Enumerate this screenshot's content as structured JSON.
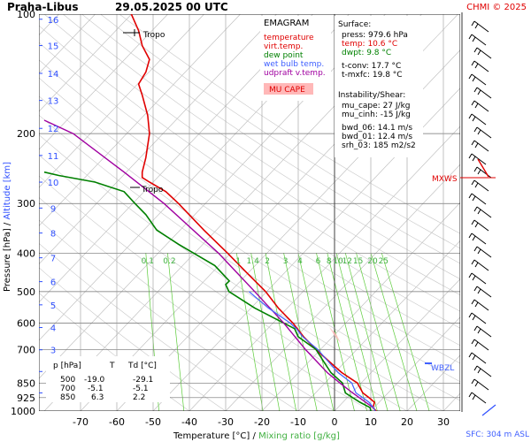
{
  "header": {
    "station": "Praha-Libus",
    "datetime": "29.05.2025 00 UTC",
    "copyright": "CHMI © 2025"
  },
  "legend": {
    "title": "EMAGRAM",
    "items": [
      {
        "label": "temperature",
        "color": "#e00000"
      },
      {
        "label": "virt.temp.",
        "color": "#e00000"
      },
      {
        "label": "dew point",
        "color": "#008000"
      },
      {
        "label": "wet bulb temp.",
        "color": "#4060ff"
      },
      {
        "label": "udpraft v.temp.",
        "color": "#a000a0"
      }
    ],
    "mu_cape_box": "MU CAPE"
  },
  "surface_panel": {
    "title": "Surface:",
    "lines": [
      {
        "text": "press: 979.6 hPa",
        "color": "#000000"
      },
      {
        "text": "temp: 10.6 °C",
        "color": "#e00000"
      },
      {
        "text": "dwpt: 9.8 °C",
        "color": "#008000"
      },
      {
        "text": "t-conv: 17.7 °C",
        "color": "#000000"
      },
      {
        "text": "t-mxfc: 19.8 °C",
        "color": "#000000"
      }
    ]
  },
  "instability_panel": {
    "title": "Instability/Shear:",
    "lines": [
      "mu_cape: 27 J/kg",
      "mu_cinh: -15 J/kg",
      "bwd_06: 14.1 m/s",
      "bwd_01: 12.4 m/s",
      "srh_03: 185 m2/s2"
    ]
  },
  "table": {
    "headers": [
      "p [hPa]",
      "T",
      "Td [°C]"
    ],
    "rows": [
      [
        "500",
        "-19.0",
        "-29.1"
      ],
      [
        "700",
        "-5.1",
        "-5.1"
      ],
      [
        "850",
        "6.3",
        "2.2"
      ]
    ]
  },
  "annotations": {
    "tropo_upper": "Tropo",
    "tropo_lower": "Tropo",
    "mxws": "MXWS",
    "wbzl": "WBZL",
    "sfc": "SFC: 304 m ASL"
  },
  "colors": {
    "temperature": "#e00000",
    "dewpoint": "#008000",
    "parcel": "#a000a0",
    "wetbulb": "#4060ff",
    "mixing_ratio": "#5ccc3a",
    "grid": "#808080",
    "isotherm": "#b8b8b8"
  },
  "chart_data": {
    "type": "line",
    "ylabel": "Pressure [hPa]",
    "ylabel2": "Altitude [km]",
    "xlabel": "Temperature [°C]",
    "xlabel2": "Mixing ratio [g/kg]",
    "xlim": [
      -80,
      30
    ],
    "ylim": [
      1000,
      100
    ],
    "y_scale": "log",
    "x_ticks": [
      "-70",
      "-60",
      "-50",
      "-40",
      "-30",
      "-20",
      "-10",
      "0",
      "10",
      "20",
      "30"
    ],
    "y_ticks": [
      "100",
      "200",
      "300",
      "400",
      "500",
      "600",
      "700",
      "850",
      "925",
      "1000"
    ],
    "altitude_ticks": [
      {
        "km": "1",
        "p": 900
      },
      {
        "km": "2",
        "p": 795
      },
      {
        "km": "3",
        "p": 701
      },
      {
        "km": "4",
        "p": 616
      },
      {
        "km": "5",
        "p": 540
      },
      {
        "km": "6",
        "p": 472
      },
      {
        "km": "7",
        "p": 411
      },
      {
        "km": "8",
        "p": 356
      },
      {
        "km": "9",
        "p": 308
      },
      {
        "km": "10",
        "p": 265
      },
      {
        "km": "11",
        "p": 227
      },
      {
        "km": "12",
        "p": 194
      },
      {
        "km": "13",
        "p": 165
      },
      {
        "km": "14",
        "p": 141
      },
      {
        "km": "15",
        "p": 120
      },
      {
        "km": "16",
        "p": 103
      }
    ],
    "mixing_ratio_labels": [
      "0.1",
      "0.2",
      "1",
      "1.4",
      "2",
      "3",
      "4",
      "6",
      "8",
      "10",
      "12",
      "15",
      "20",
      "25"
    ],
    "mixing_ratio_points": [
      {
        "label": "0.1",
        "t": -52
      },
      {
        "label": "0.2",
        "t": -46
      },
      {
        "label": "1",
        "t": -27
      },
      {
        "label": "1.4",
        "t": -23
      },
      {
        "label": "2",
        "t": -19
      },
      {
        "label": "3",
        "t": -14
      },
      {
        "label": "4",
        "t": -10
      },
      {
        "label": "6",
        "t": -5
      },
      {
        "label": "8",
        "t": -2
      },
      {
        "label": "10",
        "t": 0.5
      },
      {
        "label": "12",
        "t": 3
      },
      {
        "label": "15",
        "t": 6
      },
      {
        "label": "20",
        "t": 10
      },
      {
        "label": "25",
        "t": 13
      }
    ],
    "series": [
      {
        "key": "temperature",
        "points": [
          {
            "p": 1000,
            "t": 11.5
          },
          {
            "p": 980,
            "t": 10.6
          },
          {
            "p": 950,
            "t": 11
          },
          {
            "p": 925,
            "t": 9.5
          },
          {
            "p": 900,
            "t": 7.8
          },
          {
            "p": 850,
            "t": 6.3
          },
          {
            "p": 800,
            "t": 2
          },
          {
            "p": 750,
            "t": -1.5
          },
          {
            "p": 700,
            "t": -5.1
          },
          {
            "p": 650,
            "t": -8.5
          },
          {
            "p": 600,
            "t": -11.5
          },
          {
            "p": 550,
            "t": -15.5
          },
          {
            "p": 500,
            "t": -19
          },
          {
            "p": 450,
            "t": -24
          },
          {
            "p": 400,
            "t": -29.5
          },
          {
            "p": 350,
            "t": -36
          },
          {
            "p": 300,
            "t": -43
          },
          {
            "p": 280,
            "t": -46.5
          },
          {
            "p": 265,
            "t": -51
          },
          {
            "p": 258,
            "t": -53
          },
          {
            "p": 250,
            "t": -53
          },
          {
            "p": 230,
            "t": -52
          },
          {
            "p": 200,
            "t": -51
          },
          {
            "p": 180,
            "t": -51.5
          },
          {
            "p": 160,
            "t": -53
          },
          {
            "p": 150,
            "t": -54
          },
          {
            "p": 140,
            "t": -52
          },
          {
            "p": 130,
            "t": -51
          },
          {
            "p": 120,
            "t": -53
          },
          {
            "p": 110,
            "t": -54
          },
          {
            "p": 100,
            "t": -56
          }
        ]
      },
      {
        "key": "dewpoint",
        "points": [
          {
            "p": 1000,
            "t": 10
          },
          {
            "p": 980,
            "t": 9.8
          },
          {
            "p": 950,
            "t": 7
          },
          {
            "p": 925,
            "t": 5
          },
          {
            "p": 900,
            "t": 3
          },
          {
            "p": 850,
            "t": 2.2
          },
          {
            "p": 800,
            "t": -1
          },
          {
            "p": 750,
            "t": -3
          },
          {
            "p": 700,
            "t": -5.1
          },
          {
            "p": 650,
            "t": -10
          },
          {
            "p": 620,
            "t": -11
          },
          {
            "p": 600,
            "t": -14
          },
          {
            "p": 550,
            "t": -22
          },
          {
            "p": 500,
            "t": -29.1
          },
          {
            "p": 480,
            "t": -30
          },
          {
            "p": 470,
            "t": -29
          },
          {
            "p": 430,
            "t": -33
          },
          {
            "p": 380,
            "t": -43
          },
          {
            "p": 350,
            "t": -49
          },
          {
            "p": 320,
            "t": -52
          },
          {
            "p": 300,
            "t": -55
          },
          {
            "p": 280,
            "t": -58
          },
          {
            "p": 265,
            "t": -66
          },
          {
            "p": 255,
            "t": -76
          },
          {
            "p": 250,
            "t": -80
          }
        ]
      },
      {
        "key": "parcel",
        "points": [
          {
            "p": 980,
            "t": 10.6
          },
          {
            "p": 900,
            "t": 5
          },
          {
            "p": 850,
            "t": 1.5
          },
          {
            "p": 800,
            "t": -2
          },
          {
            "p": 700,
            "t": -8
          },
          {
            "p": 600,
            "t": -14
          },
          {
            "p": 500,
            "t": -22
          },
          {
            "p": 400,
            "t": -32
          },
          {
            "p": 300,
            "t": -47
          },
          {
            "p": 250,
            "t": -58
          },
          {
            "p": 200,
            "t": -72
          },
          {
            "p": 185,
            "t": -80
          }
        ]
      }
    ]
  }
}
